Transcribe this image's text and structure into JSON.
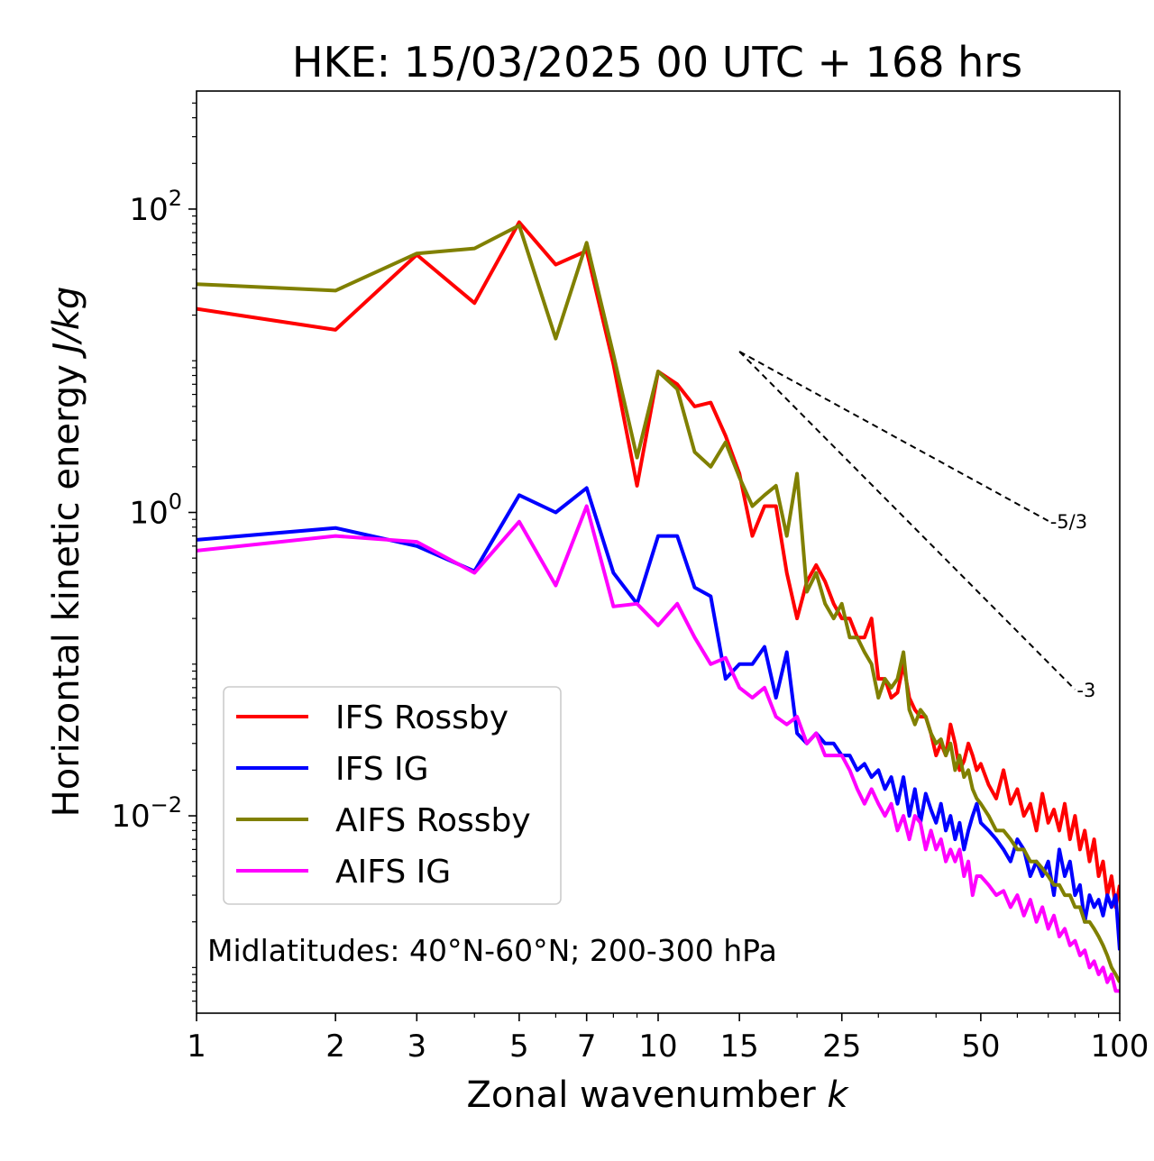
{
  "chart_data": {
    "type": "line",
    "title": "HKE: 15/03/2025 00 UTC + 168 hrs",
    "xlabel": "Zonal wavenumber",
    "xlabel_symbol": "k",
    "ylabel": "Horizontal kinetic energy",
    "ylabel_unit": "J/kg",
    "xscale": "log",
    "yscale": "log",
    "xlim": [
      1,
      100
    ],
    "ylim": [
      0.0005,
      600
    ],
    "x_ticks": [
      {
        "value": 1,
        "label": "1"
      },
      {
        "value": 2,
        "label": "2"
      },
      {
        "value": 3,
        "label": "3"
      },
      {
        "value": 5,
        "label": "5"
      },
      {
        "value": 7,
        "label": "7"
      },
      {
        "value": 10,
        "label": "10"
      },
      {
        "value": 15,
        "label": "15"
      },
      {
        "value": 25,
        "label": "25"
      },
      {
        "value": 50,
        "label": "50"
      },
      {
        "value": 100,
        "label": "100"
      }
    ],
    "y_ticks": [
      {
        "value": 100,
        "base": "10",
        "exp": "2"
      },
      {
        "value": 1,
        "base": "10",
        "exp": "0"
      },
      {
        "value": 0.01,
        "base": "10",
        "exp": "−2"
      }
    ],
    "grid": false,
    "legend_position": "lower-left",
    "annotation": "Midlatitudes: 40°N-60°N; 200-300 hPa",
    "reference_slopes": [
      {
        "label": "-5/3",
        "x_start": 15,
        "y_start": 11.5,
        "x_end": 70,
        "y_end": 0.88
      },
      {
        "label": "-3",
        "x_start": 15,
        "y_start": 11.5,
        "x_end": 80,
        "y_end": 0.068
      }
    ],
    "series": [
      {
        "name": "IFS Rossby",
        "color": "#ff0000",
        "x": [
          1,
          2,
          3,
          4,
          5,
          6,
          7,
          8,
          9,
          10,
          11,
          12,
          13,
          14,
          15,
          16,
          17,
          18,
          19,
          20,
          21,
          22,
          23,
          24,
          25,
          26,
          27,
          28,
          29,
          30,
          31,
          32,
          33,
          34,
          35,
          36,
          37,
          38,
          39,
          40,
          41,
          42,
          43,
          44,
          45,
          46,
          47,
          48,
          49,
          50,
          52,
          54,
          56,
          58,
          60,
          62,
          64,
          66,
          68,
          70,
          72,
          74,
          76,
          78,
          80,
          82,
          84,
          86,
          88,
          90,
          92,
          94,
          96,
          98,
          100
        ],
        "y": [
          22,
          16,
          50,
          24,
          82,
          43,
          53,
          9.5,
          1.5,
          8.5,
          7,
          5,
          5.3,
          3.2,
          1.8,
          0.7,
          1.1,
          1.1,
          0.4,
          0.2,
          0.35,
          0.45,
          0.35,
          0.25,
          0.2,
          0.2,
          0.15,
          0.15,
          0.2,
          0.08,
          0.08,
          0.06,
          0.065,
          0.1,
          0.06,
          0.05,
          0.045,
          0.045,
          0.035,
          0.025,
          0.03,
          0.025,
          0.04,
          0.03,
          0.02,
          0.023,
          0.03,
          0.025,
          0.02,
          0.022,
          0.016,
          0.013,
          0.02,
          0.012,
          0.015,
          0.01,
          0.012,
          0.008,
          0.014,
          0.009,
          0.011,
          0.008,
          0.012,
          0.007,
          0.01,
          0.006,
          0.008,
          0.005,
          0.007,
          0.004,
          0.005,
          0.003,
          0.004,
          0.0025,
          0.0035
        ]
      },
      {
        "name": "IFS IG",
        "color": "#0000ff",
        "x": [
          1,
          2,
          3,
          4,
          5,
          6,
          7,
          8,
          9,
          10,
          11,
          12,
          13,
          14,
          15,
          16,
          17,
          18,
          19,
          20,
          21,
          22,
          23,
          24,
          25,
          26,
          27,
          28,
          29,
          30,
          31,
          32,
          33,
          34,
          35,
          36,
          37,
          38,
          39,
          40,
          41,
          42,
          43,
          44,
          45,
          46,
          47,
          48,
          49,
          50,
          52,
          54,
          56,
          58,
          60,
          62,
          64,
          66,
          68,
          70,
          72,
          74,
          76,
          78,
          80,
          82,
          84,
          86,
          88,
          90,
          92,
          94,
          96,
          98,
          100
        ],
        "y": [
          0.66,
          0.79,
          0.6,
          0.41,
          1.3,
          1.0,
          1.45,
          0.4,
          0.25,
          0.7,
          0.7,
          0.32,
          0.28,
          0.08,
          0.1,
          0.1,
          0.13,
          0.06,
          0.12,
          0.035,
          0.03,
          0.035,
          0.03,
          0.03,
          0.025,
          0.025,
          0.02,
          0.022,
          0.018,
          0.02,
          0.015,
          0.018,
          0.012,
          0.018,
          0.01,
          0.015,
          0.009,
          0.014,
          0.011,
          0.009,
          0.012,
          0.008,
          0.01,
          0.007,
          0.009,
          0.006,
          0.008,
          0.01,
          0.012,
          0.009,
          0.008,
          0.007,
          0.006,
          0.005,
          0.007,
          0.006,
          0.004,
          0.005,
          0.004,
          0.005,
          0.003,
          0.006,
          0.004,
          0.005,
          0.003,
          0.0035,
          0.002,
          0.003,
          0.0025,
          0.0028,
          0.0022,
          0.003,
          0.0025,
          0.003,
          0.0013
        ]
      },
      {
        "name": "AIFS Rossby",
        "color": "#808000",
        "x": [
          1,
          2,
          3,
          4,
          5,
          6,
          7,
          8,
          9,
          10,
          11,
          12,
          13,
          14,
          15,
          16,
          17,
          18,
          19,
          20,
          21,
          22,
          23,
          24,
          25,
          26,
          27,
          28,
          29,
          30,
          31,
          32,
          33,
          34,
          35,
          36,
          37,
          38,
          39,
          40,
          41,
          42,
          43,
          44,
          45,
          46,
          47,
          48,
          49,
          50,
          52,
          54,
          56,
          58,
          60,
          62,
          64,
          66,
          68,
          70,
          72,
          74,
          76,
          78,
          80,
          82,
          84,
          86,
          88,
          90,
          92,
          94,
          96,
          98,
          100
        ],
        "y": [
          32,
          29,
          51,
          55,
          78,
          14,
          60,
          11,
          2.3,
          8.5,
          6.5,
          2.5,
          2.0,
          2.9,
          1.7,
          1.1,
          1.3,
          1.5,
          0.7,
          1.8,
          0.3,
          0.4,
          0.25,
          0.2,
          0.25,
          0.15,
          0.15,
          0.12,
          0.1,
          0.06,
          0.08,
          0.07,
          0.08,
          0.12,
          0.05,
          0.04,
          0.05,
          0.045,
          0.035,
          0.03,
          0.032,
          0.025,
          0.03,
          0.02,
          0.025,
          0.018,
          0.02,
          0.015,
          0.013,
          0.012,
          0.01,
          0.008,
          0.008,
          0.007,
          0.006,
          0.006,
          0.005,
          0.005,
          0.0045,
          0.004,
          0.0035,
          0.0035,
          0.003,
          0.003,
          0.0025,
          0.0025,
          0.002,
          0.002,
          0.0018,
          0.0016,
          0.0014,
          0.0012,
          0.001,
          0.0009,
          0.0008
        ]
      },
      {
        "name": "AIFS IG",
        "color": "#ff00ff",
        "x": [
          1,
          2,
          3,
          4,
          5,
          6,
          7,
          8,
          9,
          10,
          11,
          12,
          13,
          14,
          15,
          16,
          17,
          18,
          19,
          20,
          21,
          22,
          23,
          24,
          25,
          26,
          27,
          28,
          29,
          30,
          31,
          32,
          33,
          34,
          35,
          36,
          37,
          38,
          39,
          40,
          41,
          42,
          43,
          44,
          45,
          46,
          47,
          48,
          49,
          50,
          52,
          54,
          56,
          58,
          60,
          62,
          64,
          66,
          68,
          70,
          72,
          74,
          76,
          78,
          80,
          82,
          84,
          86,
          88,
          90,
          92,
          94,
          96,
          98,
          100
        ],
        "y": [
          0.56,
          0.7,
          0.64,
          0.4,
          0.87,
          0.33,
          1.1,
          0.24,
          0.25,
          0.18,
          0.25,
          0.15,
          0.1,
          0.11,
          0.07,
          0.06,
          0.07,
          0.045,
          0.04,
          0.045,
          0.03,
          0.035,
          0.025,
          0.025,
          0.025,
          0.02,
          0.015,
          0.012,
          0.015,
          0.012,
          0.01,
          0.012,
          0.008,
          0.01,
          0.007,
          0.01,
          0.009,
          0.006,
          0.008,
          0.006,
          0.007,
          0.005,
          0.006,
          0.005,
          0.006,
          0.004,
          0.005,
          0.003,
          0.004,
          0.004,
          0.0035,
          0.003,
          0.0032,
          0.0025,
          0.003,
          0.0022,
          0.0028,
          0.002,
          0.0025,
          0.0018,
          0.0022,
          0.0016,
          0.0018,
          0.0014,
          0.0015,
          0.0012,
          0.0013,
          0.001,
          0.0011,
          0.0009,
          0.001,
          0.0008,
          0.0009,
          0.0007,
          0.0007
        ]
      }
    ]
  }
}
